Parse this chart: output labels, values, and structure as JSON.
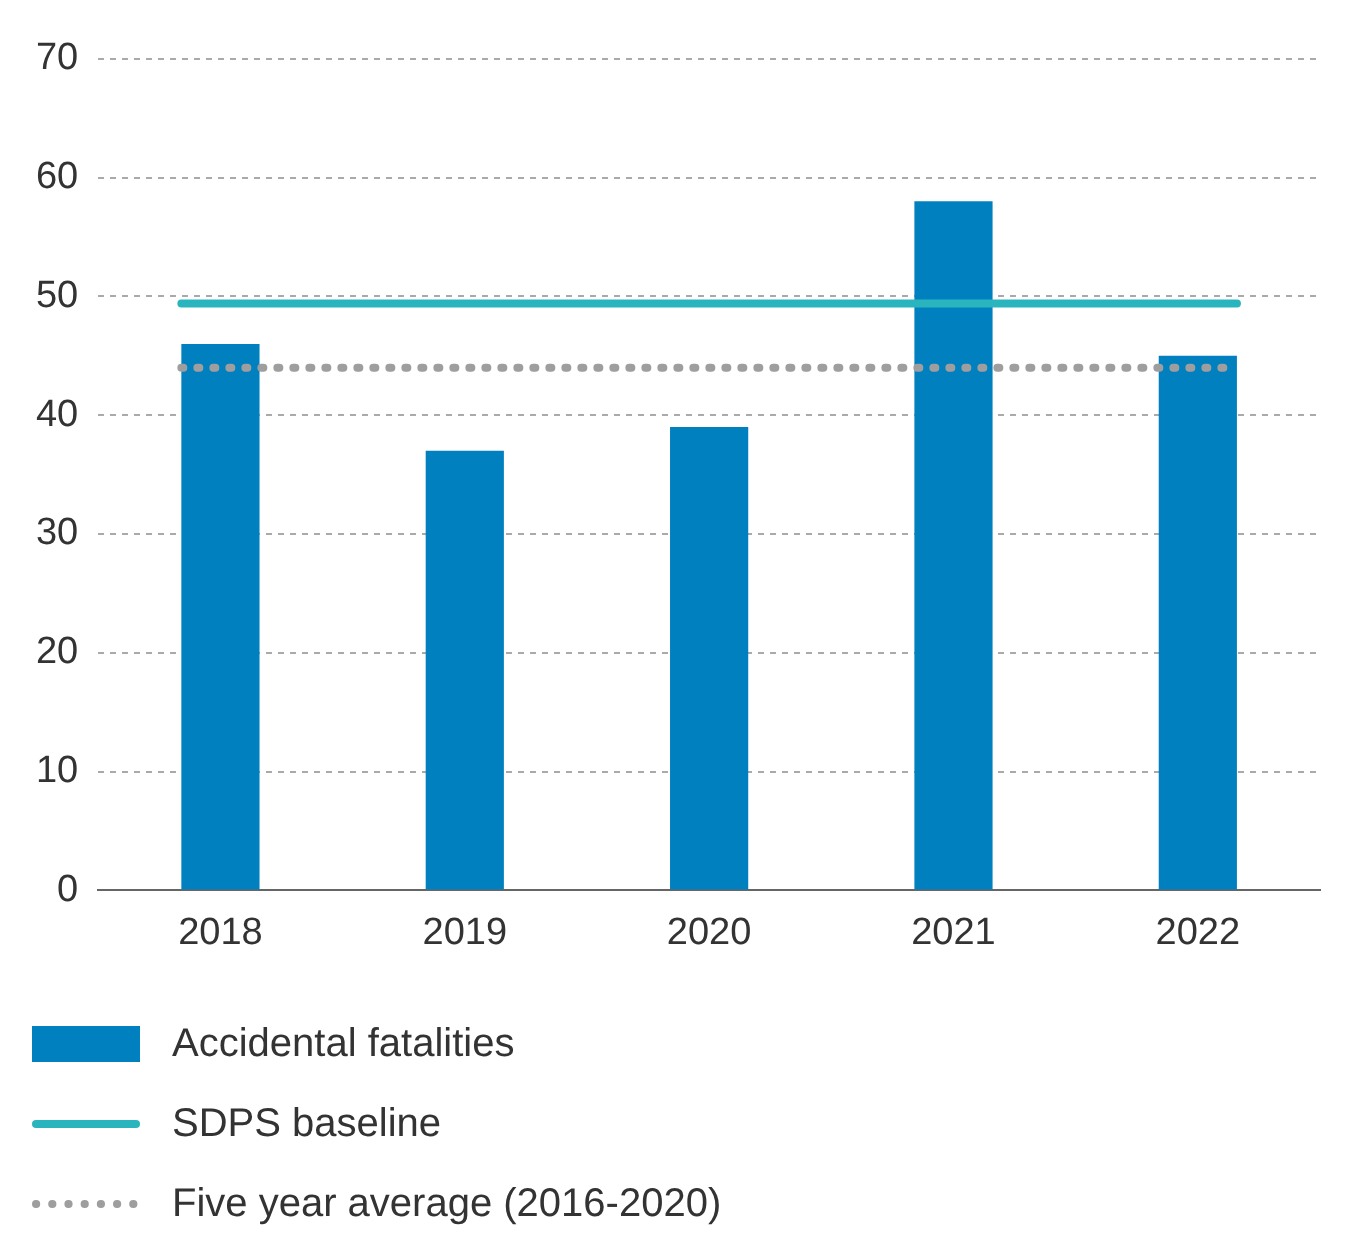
{
  "chart_data": {
    "type": "bar",
    "categories": [
      "2018",
      "2019",
      "2020",
      "2021",
      "2022"
    ],
    "series": [
      {
        "name": "Accidental fatalities",
        "color": "#0080bf",
        "values": [
          46,
          37,
          39,
          58,
          45
        ]
      }
    ],
    "ylim": [
      0,
      70
    ],
    "yticks": [
      0,
      10,
      20,
      30,
      40,
      50,
      60,
      70
    ],
    "grid": "y",
    "legend": "bottom",
    "ref_lines": [
      {
        "axis": "y",
        "value": 49.4,
        "label": "SDPS baseline",
        "color": "#2ab5be",
        "line_style": "solid"
      },
      {
        "axis": "y",
        "value": 44,
        "label": "Five year average (2016-2020)",
        "color": "#9e9e9e",
        "line_style": "dotted"
      }
    ]
  }
}
